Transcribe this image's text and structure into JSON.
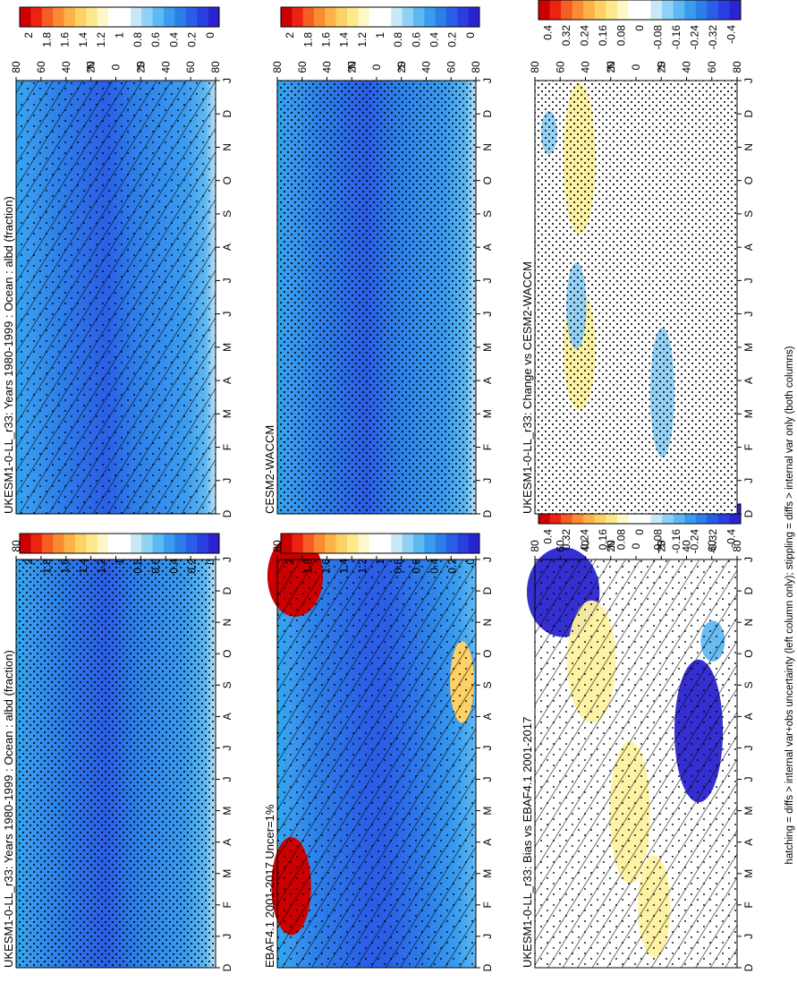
{
  "figure": {
    "footer": "hatching = diffs > internal var+obs uncertainty (left column only); stippling = diffs > internal var only (both columns)"
  },
  "colors": {
    "field_scale": [
      "#cc0000",
      "#ee2211",
      "#f55d22",
      "#fb8b32",
      "#fdb247",
      "#fdd166",
      "#fde88c",
      "#fef7c8",
      "#ffffff",
      "#ffffff",
      "#c8e8f7",
      "#8fd0f5",
      "#5eb8f2",
      "#3a9cef",
      "#2c7fe9",
      "#2b5ee6",
      "#2a3fe0",
      "#2a24d0"
    ],
    "diff_scale": [
      "#cc0000",
      "#ee2211",
      "#f55d22",
      "#fb8b32",
      "#fdb247",
      "#fdd166",
      "#fde88c",
      "#fef7c8",
      "#ffffff",
      "#ffffff",
      "#c8e8f7",
      "#8fd0f5",
      "#5eb8f2",
      "#3a9cef",
      "#2c7fe9",
      "#2b5ee6",
      "#2a3fe0",
      "#2a24d0"
    ]
  },
  "chart_data": [
    {
      "type": "heatmap",
      "title": "UKESM1-0-LL_r33: Years 1980-1999 : Ocean : albd (fraction)",
      "x_ticks": [
        "D",
        "J",
        "F",
        "M",
        "A",
        "M",
        "J",
        "J",
        "A",
        "S",
        "O",
        "N",
        "D",
        "J"
      ],
      "y_ticks": [
        "80",
        "60",
        "40",
        "20",
        "0",
        "20",
        "40",
        "60",
        "80"
      ],
      "y_hemi": [
        "°N",
        "°S"
      ],
      "colorbar_labels": [
        "2",
        "1.8",
        "1.6",
        "1.4",
        "1.2",
        "1",
        "0.8",
        "0.6",
        "0.4",
        "0.2",
        "0"
      ],
      "field": "albd",
      "marks": [
        "hatching",
        "stippling"
      ]
    },
    {
      "type": "heatmap",
      "title": "UKESM1-0-LL_r33: Years 1980-1999 : Ocean : albd (fraction)",
      "x_ticks": [
        "D",
        "J",
        "F",
        "M",
        "A",
        "M",
        "J",
        "J",
        "A",
        "S",
        "O",
        "N",
        "D",
        "J"
      ],
      "y_ticks": [
        "80",
        "60",
        "40",
        "20",
        "0",
        "20",
        "40",
        "60",
        "80"
      ],
      "y_hemi": [
        "°N",
        "°S"
      ],
      "colorbar_labels": [
        "2",
        "1.8",
        "1.6",
        "1.4",
        "1.2",
        "1",
        "0.8",
        "0.6",
        "0.4",
        "0.2",
        "0"
      ],
      "field": "albd",
      "marks": [
        "stippling"
      ]
    },
    {
      "type": "heatmap",
      "title": "EBAF4.1 2001-2017 Uncer=1%",
      "x_ticks": [
        "D",
        "J",
        "F",
        "M",
        "A",
        "M",
        "J",
        "J",
        "A",
        "S",
        "O",
        "N",
        "D",
        "J"
      ],
      "y_ticks": [
        "80",
        "60",
        "40",
        "20",
        "0",
        "20",
        "40",
        "60",
        "80"
      ],
      "y_hemi": [
        "°N",
        "°S"
      ],
      "colorbar_labels": [
        "2",
        "1.8",
        "1.6",
        "1.4",
        "1.2",
        "1",
        "0.8",
        "0.6",
        "0.4",
        "0.2",
        "0"
      ],
      "field": "albd",
      "marks": [
        "hatching",
        "stippling"
      ]
    },
    {
      "type": "heatmap",
      "title": "CESM2-WACCM",
      "x_ticks": [
        "D",
        "J",
        "F",
        "M",
        "A",
        "M",
        "J",
        "J",
        "A",
        "S",
        "O",
        "N",
        "D",
        "J"
      ],
      "y_ticks": [
        "80",
        "60",
        "40",
        "20",
        "0",
        "20",
        "40",
        "60",
        "80"
      ],
      "y_hemi": [
        "°N",
        "°S"
      ],
      "colorbar_labels": [
        "2",
        "1.8",
        "1.6",
        "1.4",
        "1.2",
        "1",
        "0.8",
        "0.6",
        "0.4",
        "0.2",
        "0"
      ],
      "field": "albd",
      "marks": [
        "stippling"
      ]
    },
    {
      "type": "heatmap",
      "title": "UKESM1-0-LL_r33: Bias vs EBAF4.1 2001-2017",
      "x_ticks": [
        "D",
        "J",
        "F",
        "M",
        "A",
        "M",
        "J",
        "J",
        "A",
        "S",
        "O",
        "N",
        "D",
        "J"
      ],
      "y_ticks": [
        "80",
        "60",
        "40",
        "20",
        "0",
        "20",
        "40",
        "60",
        "80"
      ],
      "y_hemi": [
        "°N",
        "°S"
      ],
      "colorbar_labels": [
        "0.4",
        "0.32",
        "0.24",
        "0.16",
        "0.08",
        "0",
        "-0.08",
        "-0.16",
        "-0.24",
        "-0.32",
        "-0.4"
      ],
      "field": "diff",
      "marks": [
        "hatching",
        "stippling"
      ]
    },
    {
      "type": "heatmap",
      "title": "UKESM1-0-LL_r33: Change vs CESM2-WACCM",
      "x_ticks": [
        "D",
        "J",
        "F",
        "M",
        "A",
        "M",
        "J",
        "J",
        "A",
        "S",
        "O",
        "N",
        "D",
        "J"
      ],
      "y_ticks": [
        "80",
        "60",
        "40",
        "20",
        "0",
        "20",
        "40",
        "60",
        "80"
      ],
      "y_hemi": [
        "°N",
        "°S"
      ],
      "colorbar_labels": [
        "0.4",
        "0.32",
        "0.24",
        "0.16",
        "0.08",
        "0",
        "-0.08",
        "-0.16",
        "-0.24",
        "-0.32",
        "-0.4"
      ],
      "field": "diff",
      "marks": [
        "stippling"
      ]
    }
  ]
}
